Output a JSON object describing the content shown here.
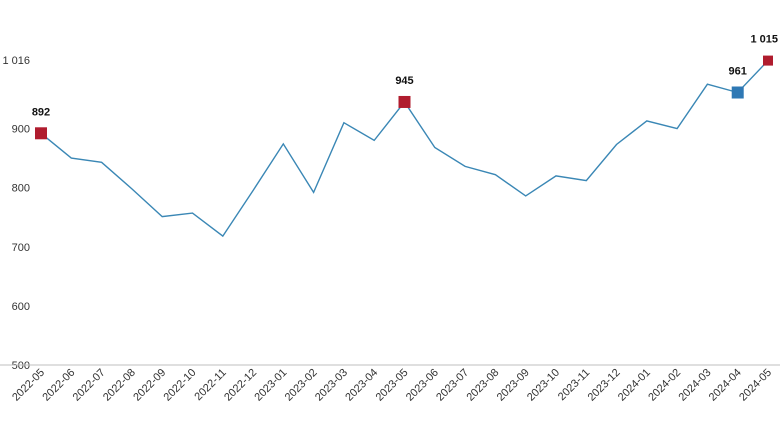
{
  "chart_data": {
    "type": "line",
    "title": "",
    "xlabel": "",
    "ylabel": "",
    "ylim": [
      500,
      1016
    ],
    "y_ticks": [
      "500",
      "600",
      "700",
      "800",
      "900",
      "1 016"
    ],
    "y_tick_values": [
      500,
      600,
      700,
      800,
      900,
      1016
    ],
    "grid": false,
    "legend": "none",
    "line_color": "#3a87b5",
    "categories": [
      "2022-05",
      "2022-06",
      "2022-07",
      "2022-08",
      "2022-09",
      "2022-10",
      "2022-11",
      "2022-12",
      "2023-01",
      "2023-02",
      "2023-03",
      "2023-04",
      "2023-05",
      "2023-06",
      "2023-07",
      "2023-08",
      "2023-09",
      "2023-10",
      "2023-11",
      "2023-12",
      "2024-01",
      "2024-02",
      "2024-03",
      "2024-04",
      "2024-05"
    ],
    "values": [
      892,
      850,
      843,
      798,
      751,
      757,
      718,
      795,
      874,
      792,
      910,
      880,
      945,
      868,
      836,
      822,
      786,
      820,
      812,
      873,
      913,
      900,
      975,
      961,
      1015
    ],
    "highlights": [
      {
        "index": 0,
        "label": "892",
        "color": "#b01c2e"
      },
      {
        "index": 12,
        "label": "945",
        "color": "#b01c2e"
      },
      {
        "index": 23,
        "label": "961",
        "color": "#2e78b4"
      },
      {
        "index": 24,
        "label": "1 015",
        "color": "#b01c2e"
      }
    ]
  }
}
